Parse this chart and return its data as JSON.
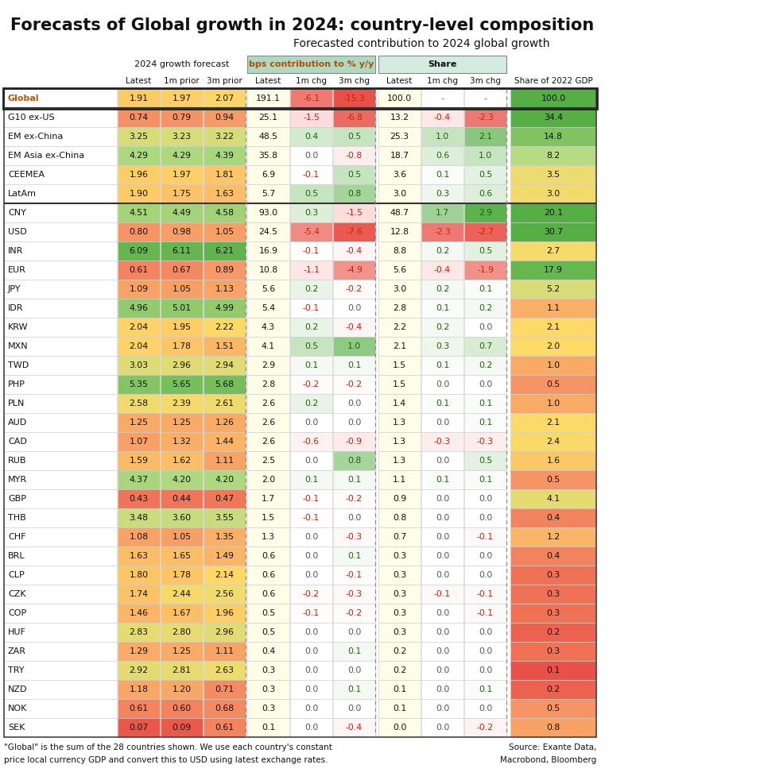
{
  "title": "Forecasts of Global growth in 2024: country-level composition",
  "subtitle": "Forecasted contribution to 2024 global growth",
  "footnote1": "\"Global\" is the sum of the 28 countries shown. We use each country's constant",
  "footnote2": "price local currency GDP and convert this to USD using latest exchange rates.",
  "source1": "Source: Exante Data,",
  "source2": "Macrobond, Bloomberg",
  "col_headers": [
    "Latest",
    "1m prior",
    "3m prior",
    "Latest",
    "1m chg",
    "3m chg",
    "Latest",
    "1m chg",
    "3m chg",
    "Share of 2022 GDP"
  ],
  "rows": [
    {
      "label": "Global",
      "bold": true,
      "box": true,
      "vals": [
        1.91,
        1.97,
        2.07,
        191.1,
        -6.1,
        -15.3,
        100.0,
        null,
        null,
        100.0
      ]
    },
    {
      "label": "G10 ex-US",
      "vals": [
        0.74,
        0.79,
        0.94,
        25.1,
        -1.5,
        -6.8,
        13.2,
        -0.4,
        -2.3,
        34.4
      ]
    },
    {
      "label": "EM ex-China",
      "vals": [
        3.25,
        3.23,
        3.22,
        48.5,
        0.4,
        0.5,
        25.3,
        1.0,
        2.1,
        14.8
      ]
    },
    {
      "label": "EM Asia ex-China",
      "vals": [
        4.29,
        4.29,
        4.39,
        35.8,
        0.0,
        -0.8,
        18.7,
        0.6,
        1.0,
        8.2
      ]
    },
    {
      "label": "CEEMEA",
      "vals": [
        1.96,
        1.97,
        1.81,
        6.9,
        -0.1,
        0.5,
        3.6,
        0.1,
        0.5,
        3.5
      ]
    },
    {
      "label": "LatAm",
      "vals": [
        1.9,
        1.75,
        1.63,
        5.7,
        0.5,
        0.8,
        3.0,
        0.3,
        0.6,
        3.0
      ]
    },
    {
      "label": "CNY",
      "vals": [
        4.51,
        4.49,
        4.58,
        93.0,
        0.3,
        -1.5,
        48.7,
        1.7,
        2.9,
        20.1
      ]
    },
    {
      "label": "USD",
      "vals": [
        0.8,
        0.98,
        1.05,
        24.5,
        -5.4,
        -7.6,
        12.8,
        -2.3,
        -2.7,
        30.7
      ]
    },
    {
      "label": "INR",
      "vals": [
        6.09,
        6.11,
        6.21,
        16.9,
        -0.1,
        -0.4,
        8.8,
        0.2,
        0.5,
        2.7
      ]
    },
    {
      "label": "EUR",
      "vals": [
        0.61,
        0.67,
        0.89,
        10.8,
        -1.1,
        -4.9,
        5.6,
        -0.4,
        -1.9,
        17.9
      ]
    },
    {
      "label": "JPY",
      "vals": [
        1.09,
        1.05,
        1.13,
        5.6,
        0.2,
        -0.2,
        3.0,
        0.2,
        0.1,
        5.2
      ]
    },
    {
      "label": "IDR",
      "vals": [
        4.96,
        5.01,
        4.99,
        5.4,
        -0.1,
        0.0,
        2.8,
        0.1,
        0.2,
        1.1
      ]
    },
    {
      "label": "KRW",
      "vals": [
        2.04,
        1.95,
        2.22,
        4.3,
        0.2,
        -0.4,
        2.2,
        0.2,
        0.0,
        2.1
      ]
    },
    {
      "label": "MXN",
      "vals": [
        2.04,
        1.78,
        1.51,
        4.1,
        0.5,
        1.0,
        2.1,
        0.3,
        0.7,
        2.0
      ]
    },
    {
      "label": "TWD",
      "vals": [
        3.03,
        2.96,
        2.94,
        2.9,
        0.1,
        0.1,
        1.5,
        0.1,
        0.2,
        1.0
      ]
    },
    {
      "label": "PHP",
      "vals": [
        5.35,
        5.65,
        5.68,
        2.8,
        -0.2,
        -0.2,
        1.5,
        0.0,
        0.0,
        0.5
      ]
    },
    {
      "label": "PLN",
      "vals": [
        2.58,
        2.39,
        2.61,
        2.6,
        0.2,
        0.0,
        1.4,
        0.1,
        0.1,
        1.0
      ]
    },
    {
      "label": "AUD",
      "vals": [
        1.25,
        1.25,
        1.26,
        2.6,
        0.0,
        0.0,
        1.3,
        0.0,
        0.1,
        2.1
      ]
    },
    {
      "label": "CAD",
      "vals": [
        1.07,
        1.32,
        1.44,
        2.6,
        -0.6,
        -0.9,
        1.3,
        -0.3,
        -0.3,
        2.4
      ]
    },
    {
      "label": "RUB",
      "vals": [
        1.59,
        1.62,
        1.11,
        2.5,
        0.0,
        0.8,
        1.3,
        0.0,
        0.5,
        1.6
      ]
    },
    {
      "label": "MYR",
      "vals": [
        4.37,
        4.2,
        4.2,
        2.0,
        0.1,
        0.1,
        1.1,
        0.1,
        0.1,
        0.5
      ]
    },
    {
      "label": "GBP",
      "vals": [
        0.43,
        0.44,
        0.47,
        1.7,
        -0.1,
        -0.2,
        0.9,
        0.0,
        0.0,
        4.1
      ]
    },
    {
      "label": "THB",
      "vals": [
        3.48,
        3.6,
        3.55,
        1.5,
        -0.1,
        0.0,
        0.8,
        0.0,
        0.0,
        0.4
      ]
    },
    {
      "label": "CHF",
      "vals": [
        1.08,
        1.05,
        1.35,
        1.3,
        0.0,
        -0.3,
        0.7,
        0.0,
        -0.1,
        1.2
      ]
    },
    {
      "label": "BRL",
      "vals": [
        1.63,
        1.65,
        1.49,
        0.6,
        0.0,
        0.1,
        0.3,
        0.0,
        0.0,
        0.4
      ]
    },
    {
      "label": "CLP",
      "vals": [
        1.8,
        1.78,
        2.14,
        0.6,
        0.0,
        -0.1,
        0.3,
        0.0,
        0.0,
        0.3
      ]
    },
    {
      "label": "CZK",
      "vals": [
        1.74,
        2.44,
        2.56,
        0.6,
        -0.2,
        -0.3,
        0.3,
        -0.1,
        -0.1,
        0.3
      ]
    },
    {
      "label": "COP",
      "vals": [
        1.46,
        1.67,
        1.96,
        0.5,
        -0.1,
        -0.2,
        0.3,
        0.0,
        -0.1,
        0.3
      ]
    },
    {
      "label": "HUF",
      "vals": [
        2.83,
        2.8,
        2.96,
        0.5,
        0.0,
        0.0,
        0.3,
        0.0,
        0.0,
        0.2
      ]
    },
    {
      "label": "ZAR",
      "vals": [
        1.29,
        1.25,
        1.11,
        0.4,
        0.0,
        0.1,
        0.2,
        0.0,
        0.0,
        0.3
      ]
    },
    {
      "label": "TRY",
      "vals": [
        2.92,
        2.81,
        2.63,
        0.3,
        0.0,
        0.0,
        0.2,
        0.0,
        0.0,
        0.1
      ]
    },
    {
      "label": "NZD",
      "vals": [
        1.18,
        1.2,
        0.71,
        0.3,
        0.0,
        0.1,
        0.1,
        0.0,
        0.1,
        0.2
      ]
    },
    {
      "label": "NOK",
      "vals": [
        0.61,
        0.6,
        0.68,
        0.3,
        0.0,
        0.0,
        0.1,
        0.0,
        0.0,
        0.5
      ]
    },
    {
      "label": "SEK",
      "vals": [
        0.07,
        0.09,
        0.61,
        0.1,
        0.0,
        -0.4,
        0.0,
        0.0,
        -0.2,
        0.8
      ]
    }
  ]
}
